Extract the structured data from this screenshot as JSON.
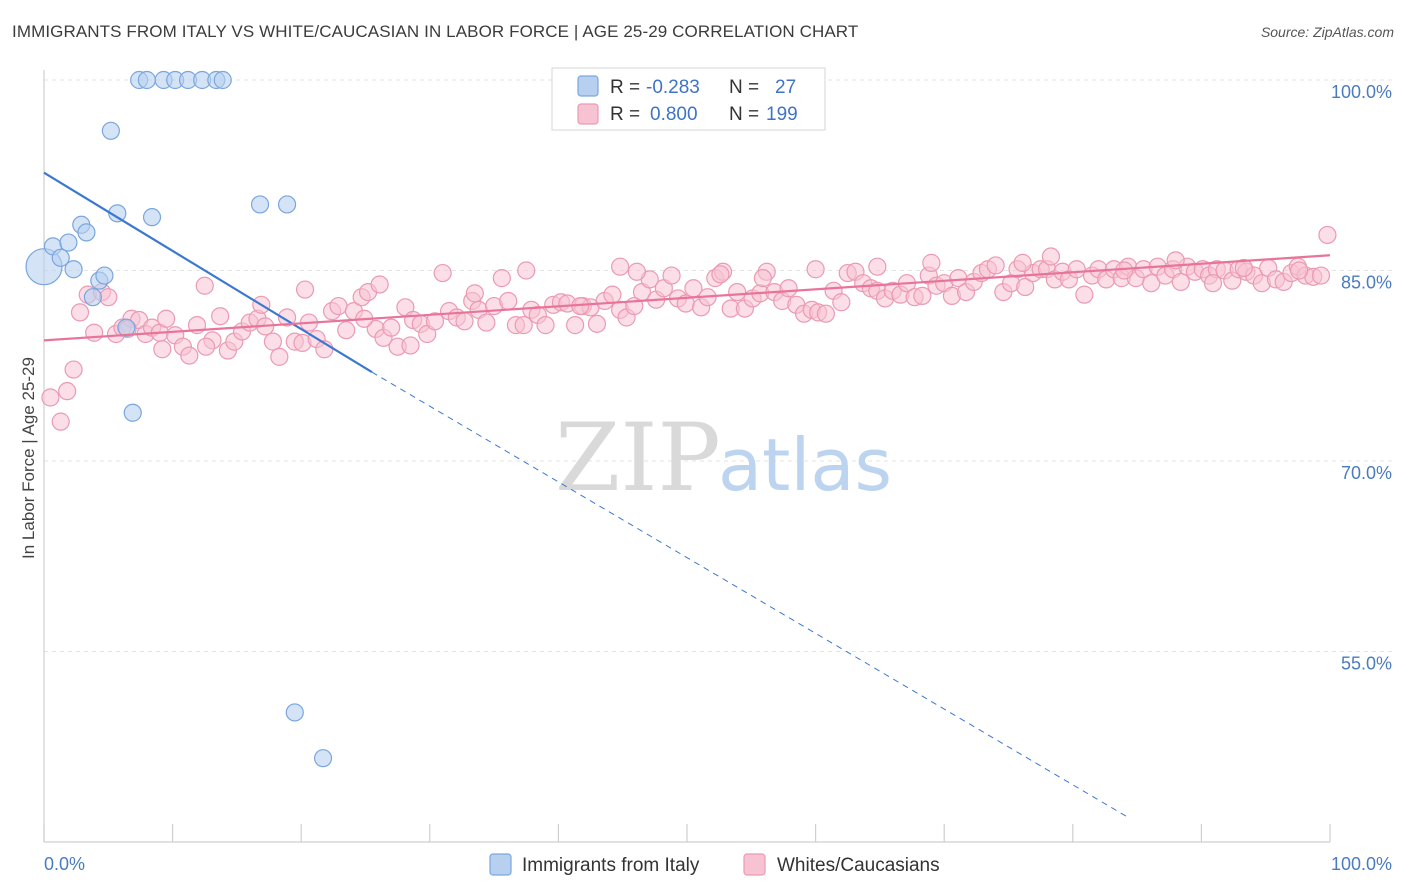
{
  "header": {
    "title": "IMMIGRANTS FROM ITALY VS WHITE/CAUCASIAN IN LABOR FORCE | AGE 25-29 CORRELATION CHART",
    "source": "Source: ZipAtlas.com"
  },
  "watermark": {
    "zip": "ZIP",
    "atlas": "atlas"
  },
  "legend_top": {
    "rows": [
      {
        "r_label": "R =",
        "r_value": "-0.283",
        "n_label": "N =",
        "n_value": "27"
      },
      {
        "r_label": "R =",
        "r_value": "0.800",
        "n_label": "N =",
        "n_value": "199"
      }
    ]
  },
  "legend_bottom": {
    "items": [
      {
        "label": "Immigrants from Italy"
      },
      {
        "label": "Whites/Caucasians"
      }
    ]
  },
  "colors": {
    "blue_fill": "#b7d0f0",
    "blue_stroke": "#7aa6dd",
    "blue_line": "#3b78d0",
    "pink_fill": "#f7c3d3",
    "pink_stroke": "#eb9ab4",
    "pink_line": "#e8749a",
    "tick_text": "#4a7cc0"
  },
  "chart_data": {
    "type": "scatter",
    "title": "IMMIGRANTS FROM ITALY VS WHITE/CAUCASIAN IN LABOR FORCE | AGE 25-29 CORRELATION CHART",
    "xlabel": "",
    "ylabel": "In Labor Force | Age 25-29",
    "xlim": [
      0,
      100
    ],
    "ylim": [
      40,
      100
    ],
    "x_tick_labels": [
      "0.0%",
      "100.0%"
    ],
    "y_tick_labels": [
      "100.0%",
      "85.0%",
      "70.0%",
      "55.0%"
    ],
    "y_ticks": [
      100,
      85,
      70,
      55
    ],
    "grid": true,
    "legend_position": "top-center",
    "series": [
      {
        "name": "Immigrants from Italy",
        "r": -0.283,
        "n": 27,
        "points": [
          [
            0.0,
            85.3
          ],
          [
            0.7,
            86.9
          ],
          [
            1.3,
            86.0
          ],
          [
            1.9,
            87.2
          ],
          [
            2.3,
            85.1
          ],
          [
            2.9,
            88.6
          ],
          [
            3.3,
            88.0
          ],
          [
            3.8,
            82.9
          ],
          [
            4.3,
            84.2
          ],
          [
            4.7,
            84.6
          ],
          [
            5.2,
            96.0
          ],
          [
            5.7,
            89.5
          ],
          [
            6.4,
            80.5
          ],
          [
            6.9,
            73.8
          ],
          [
            7.4,
            100.0
          ],
          [
            8.0,
            100.0
          ],
          [
            9.3,
            100.0
          ],
          [
            10.2,
            100.0
          ],
          [
            11.2,
            100.0
          ],
          [
            12.3,
            100.0
          ],
          [
            13.4,
            100.0
          ],
          [
            13.9,
            100.0
          ],
          [
            16.8,
            90.2
          ],
          [
            18.9,
            90.2
          ],
          [
            19.5,
            50.2
          ],
          [
            21.7,
            46.6
          ],
          [
            8.4,
            89.2
          ]
        ],
        "trend": {
          "x": [
            0,
            25.5
          ],
          "y": [
            92.7,
            77.0
          ],
          "dashed_extension_to": [
            84.2,
            42.0
          ]
        }
      },
      {
        "name": "Whites/Caucasians",
        "r": 0.8,
        "n": 199,
        "points": [
          [
            0.5,
            75.0
          ],
          [
            1.3,
            73.1
          ],
          [
            1.8,
            75.5
          ],
          [
            2.3,
            77.2
          ],
          [
            2.8,
            81.7
          ],
          [
            3.4,
            83.1
          ],
          [
            3.9,
            80.1
          ],
          [
            4.5,
            83.3
          ],
          [
            5.0,
            82.9
          ],
          [
            5.6,
            80.0
          ],
          [
            6.1,
            80.5
          ],
          [
            6.8,
            81.2
          ],
          [
            7.4,
            81.1
          ],
          [
            7.9,
            80.0
          ],
          [
            8.4,
            80.5
          ],
          [
            9.0,
            80.1
          ],
          [
            9.5,
            81.2
          ],
          [
            10.2,
            79.9
          ],
          [
            10.8,
            79.0
          ],
          [
            11.3,
            78.3
          ],
          [
            11.9,
            80.7
          ],
          [
            12.5,
            83.8
          ],
          [
            13.1,
            79.5
          ],
          [
            13.7,
            81.4
          ],
          [
            14.3,
            78.7
          ],
          [
            14.8,
            79.4
          ],
          [
            15.4,
            80.2
          ],
          [
            16.0,
            80.9
          ],
          [
            16.6,
            81.2
          ],
          [
            17.2,
            80.6
          ],
          [
            17.8,
            79.4
          ],
          [
            18.3,
            78.2
          ],
          [
            18.9,
            81.3
          ],
          [
            19.5,
            79.4
          ],
          [
            20.1,
            79.3
          ],
          [
            20.6,
            80.9
          ],
          [
            21.2,
            79.6
          ],
          [
            21.8,
            78.8
          ],
          [
            22.4,
            81.8
          ],
          [
            22.9,
            82.2
          ],
          [
            23.5,
            80.3
          ],
          [
            24.1,
            81.8
          ],
          [
            24.7,
            82.9
          ],
          [
            25.2,
            83.3
          ],
          [
            25.8,
            80.4
          ],
          [
            26.4,
            79.7
          ],
          [
            27.0,
            80.5
          ],
          [
            27.5,
            79.0
          ],
          [
            28.1,
            82.1
          ],
          [
            28.7,
            81.1
          ],
          [
            29.3,
            80.8
          ],
          [
            29.8,
            80.0
          ],
          [
            30.4,
            81.0
          ],
          [
            31.0,
            84.8
          ],
          [
            31.5,
            81.8
          ],
          [
            32.1,
            81.3
          ],
          [
            32.7,
            81.0
          ],
          [
            33.3,
            82.6
          ],
          [
            33.8,
            81.9
          ],
          [
            34.4,
            80.9
          ],
          [
            35.0,
            82.2
          ],
          [
            35.6,
            84.4
          ],
          [
            36.1,
            82.6
          ],
          [
            36.7,
            80.7
          ],
          [
            37.3,
            80.7
          ],
          [
            37.9,
            81.9
          ],
          [
            38.4,
            81.5
          ],
          [
            39.0,
            80.7
          ],
          [
            39.6,
            82.3
          ],
          [
            40.2,
            82.5
          ],
          [
            40.7,
            82.4
          ],
          [
            41.3,
            80.7
          ],
          [
            41.9,
            82.2
          ],
          [
            42.5,
            82.1
          ],
          [
            43.0,
            80.8
          ],
          [
            43.6,
            82.6
          ],
          [
            44.2,
            83.1
          ],
          [
            44.8,
            81.9
          ],
          [
            45.3,
            81.3
          ],
          [
            45.9,
            82.2
          ],
          [
            46.5,
            83.3
          ],
          [
            47.1,
            84.3
          ],
          [
            47.6,
            82.7
          ],
          [
            48.2,
            83.6
          ],
          [
            48.8,
            84.6
          ],
          [
            49.3,
            82.8
          ],
          [
            49.9,
            82.4
          ],
          [
            50.5,
            83.6
          ],
          [
            51.1,
            82.1
          ],
          [
            51.6,
            82.9
          ],
          [
            52.2,
            84.4
          ],
          [
            52.8,
            84.9
          ],
          [
            53.4,
            82.0
          ],
          [
            53.9,
            83.3
          ],
          [
            54.5,
            82.0
          ],
          [
            55.1,
            82.8
          ],
          [
            55.7,
            83.2
          ],
          [
            56.2,
            84.9
          ],
          [
            56.8,
            83.3
          ],
          [
            57.4,
            82.6
          ],
          [
            57.9,
            83.6
          ],
          [
            58.5,
            82.3
          ],
          [
            59.1,
            81.6
          ],
          [
            59.7,
            81.9
          ],
          [
            60.2,
            81.7
          ],
          [
            60.8,
            81.6
          ],
          [
            61.4,
            83.4
          ],
          [
            62.0,
            82.5
          ],
          [
            62.5,
            84.8
          ],
          [
            63.1,
            84.9
          ],
          [
            63.7,
            84.0
          ],
          [
            64.3,
            83.6
          ],
          [
            64.8,
            83.4
          ],
          [
            65.4,
            82.8
          ],
          [
            66.0,
            83.4
          ],
          [
            66.6,
            83.1
          ],
          [
            67.1,
            84.0
          ],
          [
            67.7,
            82.9
          ],
          [
            68.3,
            83.0
          ],
          [
            68.8,
            84.6
          ],
          [
            69.4,
            83.8
          ],
          [
            70.0,
            84.0
          ],
          [
            70.6,
            83.0
          ],
          [
            71.1,
            84.4
          ],
          [
            71.7,
            83.3
          ],
          [
            72.3,
            84.1
          ],
          [
            72.9,
            84.8
          ],
          [
            73.4,
            85.1
          ],
          [
            74.0,
            85.4
          ],
          [
            74.6,
            83.3
          ],
          [
            75.2,
            84.0
          ],
          [
            75.7,
            85.1
          ],
          [
            76.3,
            83.7
          ],
          [
            76.9,
            84.8
          ],
          [
            77.5,
            85.1
          ],
          [
            78.0,
            85.1
          ],
          [
            78.6,
            84.3
          ],
          [
            79.2,
            84.9
          ],
          [
            79.7,
            84.3
          ],
          [
            80.3,
            85.1
          ],
          [
            80.9,
            83.1
          ],
          [
            81.5,
            84.6
          ],
          [
            82.0,
            85.1
          ],
          [
            82.6,
            84.3
          ],
          [
            83.2,
            85.1
          ],
          [
            83.8,
            84.4
          ],
          [
            84.3,
            85.3
          ],
          [
            84.9,
            84.4
          ],
          [
            85.5,
            85.1
          ],
          [
            86.1,
            84.0
          ],
          [
            86.6,
            85.3
          ],
          [
            87.2,
            84.6
          ],
          [
            87.8,
            85.1
          ],
          [
            88.4,
            84.1
          ],
          [
            88.9,
            85.3
          ],
          [
            89.5,
            84.9
          ],
          [
            90.1,
            85.1
          ],
          [
            90.6,
            84.6
          ],
          [
            91.2,
            85.1
          ],
          [
            91.8,
            85.0
          ],
          [
            92.4,
            84.2
          ],
          [
            92.9,
            85.1
          ],
          [
            93.5,
            84.9
          ],
          [
            94.1,
            84.6
          ],
          [
            94.7,
            84.0
          ],
          [
            95.2,
            85.2
          ],
          [
            95.8,
            84.3
          ],
          [
            96.4,
            84.1
          ],
          [
            97.0,
            84.8
          ],
          [
            97.5,
            85.3
          ],
          [
            98.1,
            84.6
          ],
          [
            98.7,
            84.5
          ],
          [
            99.3,
            84.6
          ],
          [
            99.8,
            87.8
          ],
          [
            84.0,
            85.0
          ],
          [
            78.3,
            86.1
          ],
          [
            76.1,
            85.6
          ],
          [
            69.0,
            85.6
          ],
          [
            64.8,
            85.3
          ],
          [
            60.0,
            85.1
          ],
          [
            55.9,
            84.4
          ],
          [
            46.1,
            84.9
          ],
          [
            41.7,
            82.2
          ],
          [
            37.5,
            85.0
          ],
          [
            28.5,
            79.1
          ],
          [
            24.9,
            81.2
          ],
          [
            20.3,
            83.5
          ],
          [
            16.9,
            82.3
          ],
          [
            12.6,
            79.0
          ],
          [
            9.2,
            78.8
          ],
          [
            88.0,
            85.8
          ],
          [
            90.9,
            84.0
          ],
          [
            93.3,
            85.2
          ],
          [
            97.6,
            85.0
          ],
          [
            52.6,
            84.7
          ],
          [
            44.8,
            85.3
          ],
          [
            33.5,
            83.2
          ],
          [
            26.1,
            83.9
          ],
          [
            6.5,
            80.4
          ]
        ],
        "trend": {
          "x": [
            0,
            100
          ],
          "y": [
            79.5,
            86.2
          ]
        }
      }
    ]
  }
}
